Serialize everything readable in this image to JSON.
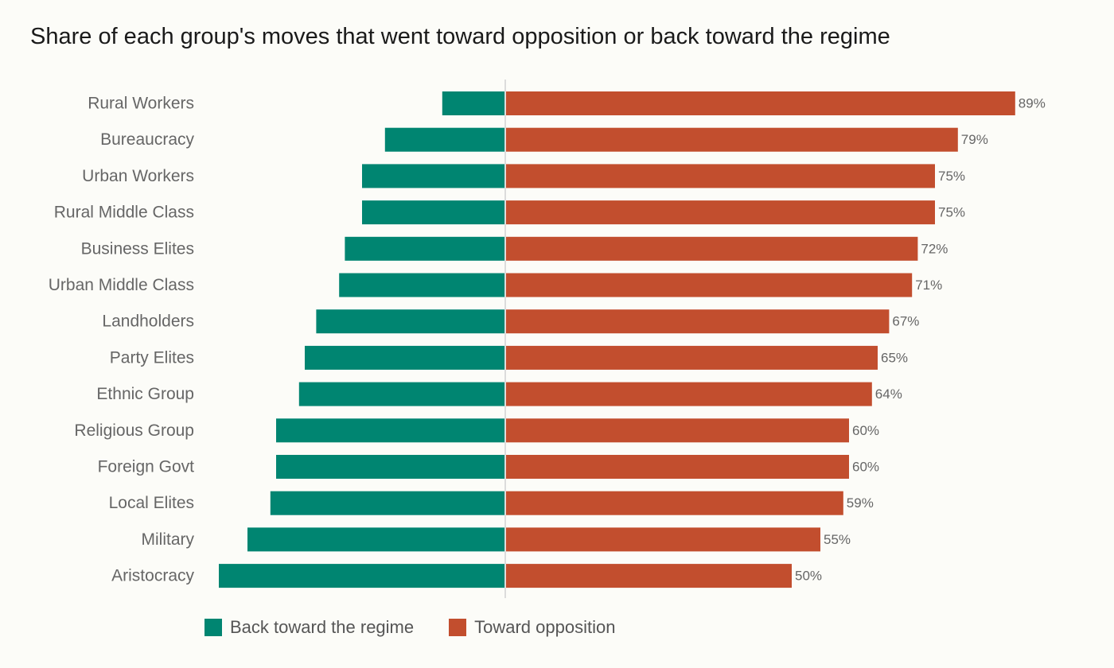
{
  "colors": {
    "regime": "#008571",
    "opposition": "#c24e2e",
    "axis": "#dcdcdc"
  },
  "chart_data": {
    "type": "bar",
    "orientation": "horizontal-diverging",
    "title": "Share of each group's moves that went toward opposition or back toward the regime",
    "categories": [
      "Rural Workers",
      "Bureaucracy",
      "Urban Workers",
      "Rural Middle Class",
      "Business Elites",
      "Urban Middle Class",
      "Landholders",
      "Party Elites",
      "Ethnic Group",
      "Religious Group",
      "Foreign Govt",
      "Local Elites",
      "Military",
      "Aristocracy"
    ],
    "series": [
      {
        "name": "Back toward the regime",
        "values": [
          11,
          21,
          25,
          25,
          28,
          29,
          33,
          35,
          36,
          40,
          40,
          41,
          45,
          50
        ]
      },
      {
        "name": "Toward opposition",
        "values": [
          89,
          79,
          75,
          75,
          72,
          71,
          67,
          65,
          64,
          60,
          60,
          59,
          55,
          50
        ]
      }
    ],
    "data_labels": [
      "89%",
      "79%",
      "75%",
      "75%",
      "72%",
      "71%",
      "67%",
      "65%",
      "64%",
      "60%",
      "60%",
      "59%",
      "55%",
      "50%"
    ],
    "legend": {
      "position": "bottom-left",
      "entries": [
        "Back toward the regime",
        "Toward opposition"
      ]
    },
    "grid": false
  }
}
